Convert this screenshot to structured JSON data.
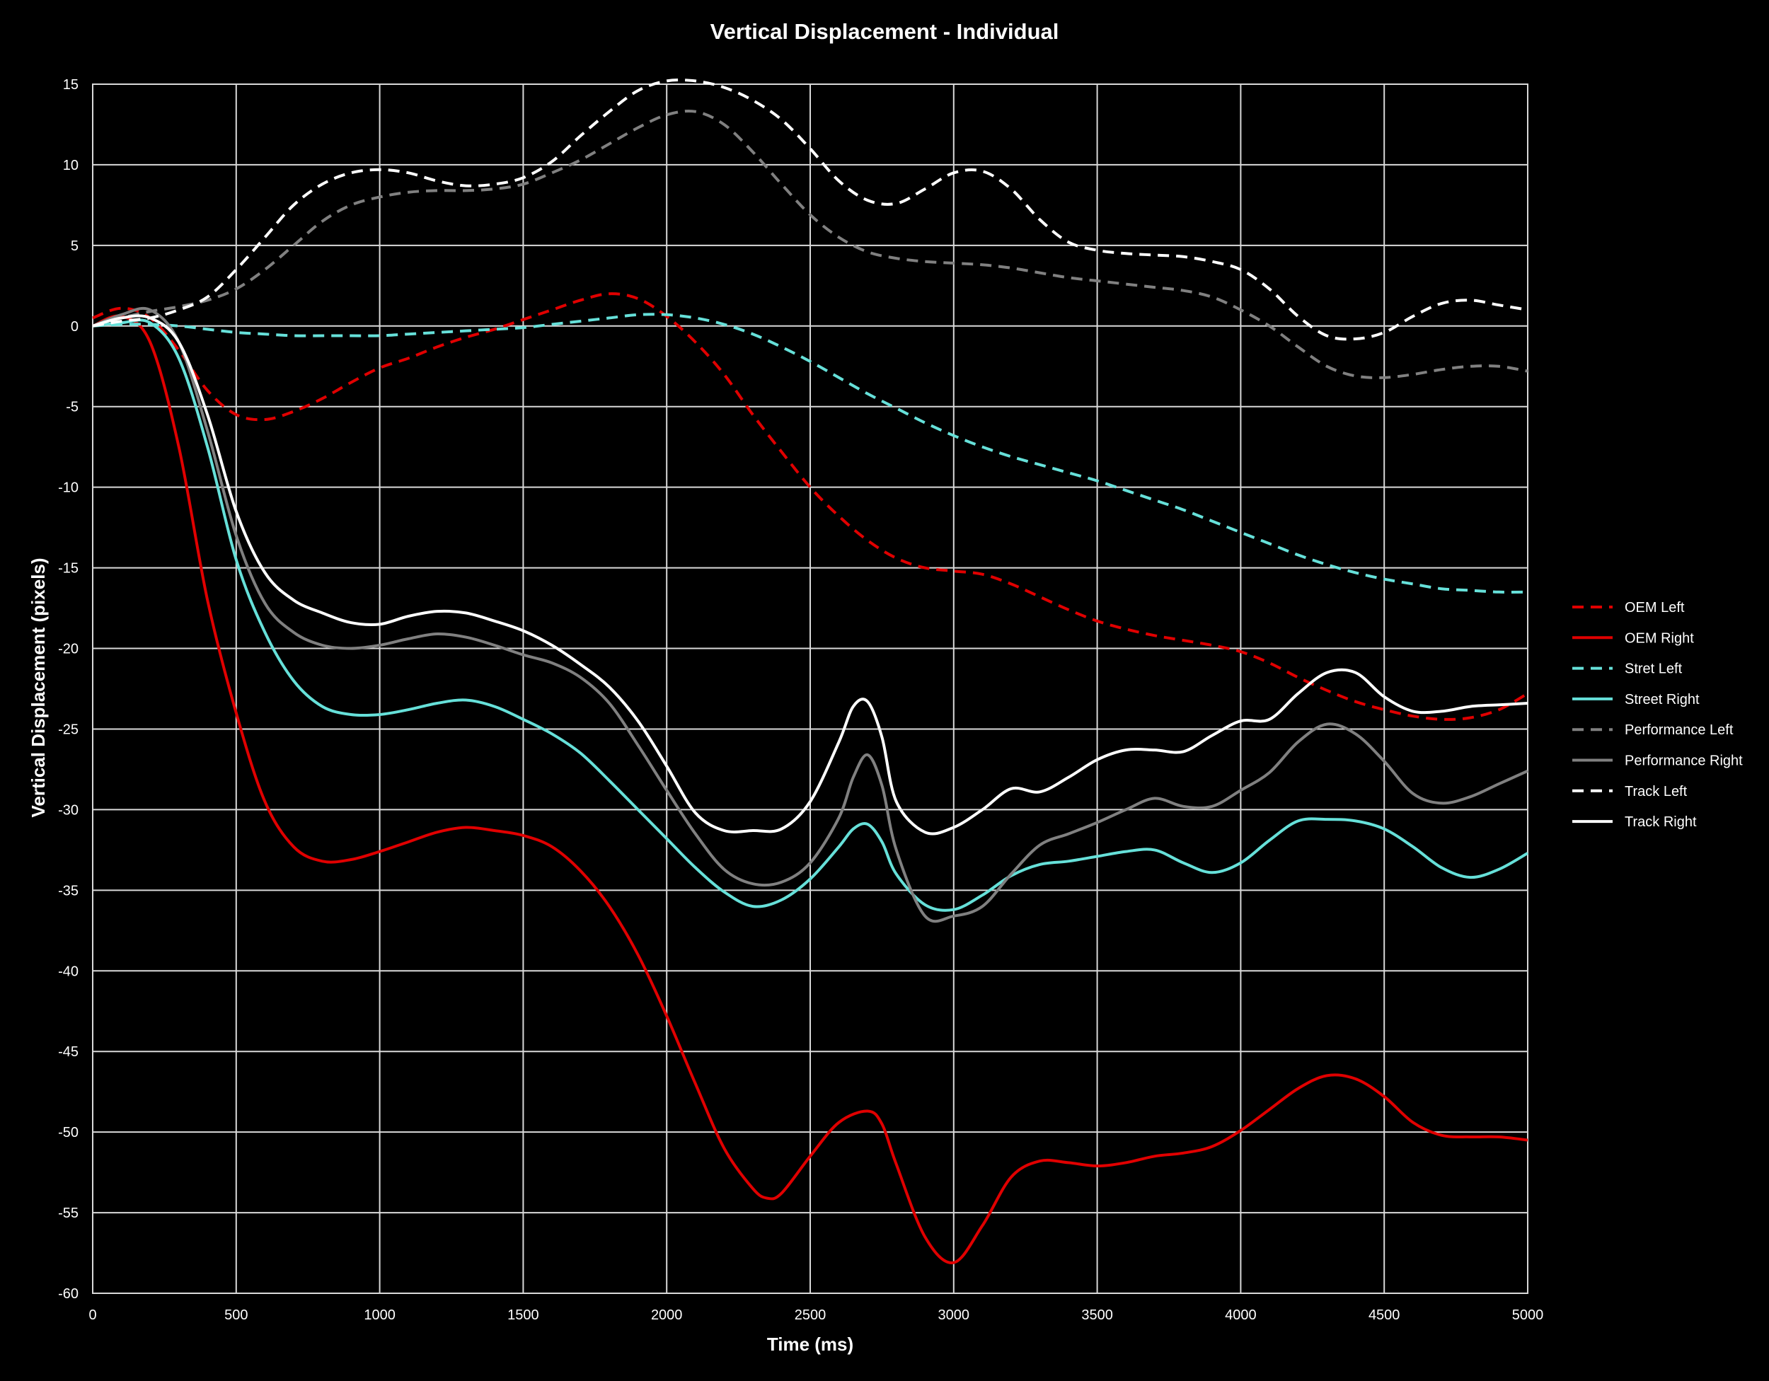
{
  "chart_data": {
    "type": "line",
    "title": "Vertical Displacement - Individual",
    "xlabel": "Time (ms)",
    "ylabel": "Vertical Displacement (pixels)",
    "xlim": [
      0,
      5000
    ],
    "ylim": [
      -60,
      15
    ],
    "xticks": [
      0,
      500,
      1000,
      1500,
      2000,
      2500,
      3000,
      3500,
      4000,
      4500,
      5000
    ],
    "yticks": [
      15,
      10,
      5,
      0,
      -5,
      -10,
      -15,
      -20,
      -25,
      -30,
      -35,
      -40,
      -45,
      -50,
      -55,
      -60
    ],
    "grid": true,
    "legend_position": "right",
    "background": "#000000",
    "grid_color": "#d9d9d9",
    "series": [
      {
        "name": "OEM Left",
        "color": "#e00000",
        "dash": "dashed",
        "x": [
          0,
          100,
          200,
          300,
          400,
          500,
          600,
          700,
          800,
          900,
          1000,
          1100,
          1200,
          1300,
          1400,
          1500,
          1600,
          1700,
          1800,
          1900,
          2000,
          2100,
          2200,
          2300,
          2400,
          2500,
          2600,
          2700,
          2800,
          2900,
          3000,
          3100,
          3200,
          3300,
          3400,
          3500,
          3600,
          3700,
          3800,
          3900,
          4000,
          4100,
          4200,
          4300,
          4400,
          4500,
          4600,
          4700,
          4800,
          4900,
          5000
        ],
        "y": [
          0.5,
          1.1,
          0.5,
          -1.5,
          -4.0,
          -5.5,
          -5.8,
          -5.3,
          -4.5,
          -3.5,
          -2.6,
          -2.0,
          -1.3,
          -0.7,
          -0.2,
          0.4,
          1.0,
          1.6,
          2.0,
          1.7,
          0.6,
          -1.0,
          -3.0,
          -5.5,
          -7.8,
          -10.0,
          -11.8,
          -13.3,
          -14.4,
          -15.0,
          -15.2,
          -15.4,
          -16.0,
          -16.8,
          -17.6,
          -18.3,
          -18.8,
          -19.2,
          -19.5,
          -19.8,
          -20.2,
          -20.9,
          -21.8,
          -22.6,
          -23.3,
          -23.8,
          -24.2,
          -24.4,
          -24.3,
          -23.8,
          -22.8
        ]
      },
      {
        "name": "OEM Right",
        "color": "#e00000",
        "dash": "solid",
        "x": [
          0,
          100,
          200,
          300,
          400,
          500,
          600,
          700,
          800,
          900,
          1000,
          1100,
          1200,
          1300,
          1400,
          1500,
          1600,
          1700,
          1800,
          1900,
          2000,
          2100,
          2200,
          2300,
          2350,
          2400,
          2500,
          2600,
          2700,
          2750,
          2800,
          2900,
          3000,
          3100,
          3200,
          3300,
          3400,
          3500,
          3600,
          3700,
          3800,
          3900,
          4000,
          4100,
          4200,
          4300,
          4400,
          4500,
          4600,
          4700,
          4800,
          4900,
          5000
        ],
        "y": [
          0.0,
          0.6,
          -1.0,
          -7.5,
          -17.0,
          -24.0,
          -29.5,
          -32.3,
          -33.2,
          -33.1,
          -32.6,
          -32.0,
          -31.4,
          -31.1,
          -31.3,
          -31.6,
          -32.3,
          -33.8,
          -36.0,
          -39.0,
          -42.8,
          -47.0,
          -51.0,
          -53.5,
          -54.1,
          -53.8,
          -51.5,
          -49.4,
          -48.7,
          -49.5,
          -52.0,
          -56.5,
          -58.1,
          -55.8,
          -52.8,
          -51.8,
          -51.9,
          -52.1,
          -51.9,
          -51.5,
          -51.3,
          -50.9,
          -49.9,
          -48.6,
          -47.3,
          -46.5,
          -46.7,
          -47.8,
          -49.4,
          -50.2,
          -50.3,
          -50.3,
          -50.5
        ]
      },
      {
        "name": "Stret Left",
        "color": "#66e0d9",
        "dash": "dashed",
        "x": [
          0,
          100,
          200,
          300,
          400,
          500,
          600,
          700,
          800,
          900,
          1000,
          1100,
          1200,
          1300,
          1400,
          1500,
          1600,
          1700,
          1800,
          1900,
          2000,
          2100,
          2200,
          2300,
          2400,
          2500,
          2600,
          2700,
          2800,
          2900,
          3000,
          3100,
          3200,
          3300,
          3400,
          3500,
          3600,
          3700,
          3800,
          3900,
          4000,
          4100,
          4200,
          4300,
          4400,
          4500,
          4600,
          4700,
          4800,
          4900,
          5000
        ],
        "y": [
          0.0,
          0.1,
          0.1,
          0.0,
          -0.2,
          -0.4,
          -0.5,
          -0.6,
          -0.6,
          -0.6,
          -0.6,
          -0.5,
          -0.4,
          -0.3,
          -0.2,
          -0.1,
          0.1,
          0.3,
          0.5,
          0.7,
          0.7,
          0.5,
          0.1,
          -0.5,
          -1.3,
          -2.2,
          -3.2,
          -4.2,
          -5.1,
          -6.0,
          -6.8,
          -7.5,
          -8.1,
          -8.6,
          -9.1,
          -9.6,
          -10.2,
          -10.8,
          -11.4,
          -12.1,
          -12.8,
          -13.5,
          -14.2,
          -14.8,
          -15.3,
          -15.7,
          -16.0,
          -16.3,
          -16.4,
          -16.5,
          -16.5
        ]
      },
      {
        "name": "Street Right",
        "color": "#66e0d9",
        "dash": "solid",
        "x": [
          0,
          100,
          200,
          300,
          400,
          500,
          600,
          700,
          800,
          900,
          1000,
          1100,
          1200,
          1300,
          1400,
          1500,
          1600,
          1700,
          1800,
          1900,
          2000,
          2100,
          2200,
          2300,
          2400,
          2500,
          2600,
          2650,
          2700,
          2750,
          2800,
          2900,
          3000,
          3100,
          3200,
          3300,
          3400,
          3500,
          3600,
          3700,
          3800,
          3900,
          4000,
          4100,
          4200,
          4300,
          4400,
          4500,
          4600,
          4700,
          4800,
          4900,
          5000
        ],
        "y": [
          0.0,
          0.2,
          0.2,
          -2.0,
          -7.5,
          -14.5,
          -19.0,
          -22.0,
          -23.6,
          -24.1,
          -24.1,
          -23.8,
          -23.4,
          -23.2,
          -23.6,
          -24.4,
          -25.3,
          -26.5,
          -28.2,
          -30.0,
          -31.8,
          -33.6,
          -35.1,
          -36.0,
          -35.6,
          -34.3,
          -32.3,
          -31.2,
          -30.9,
          -32.0,
          -34.0,
          -35.9,
          -36.2,
          -35.3,
          -34.1,
          -33.4,
          -33.2,
          -32.9,
          -32.6,
          -32.5,
          -33.3,
          -33.9,
          -33.3,
          -31.9,
          -30.7,
          -30.6,
          -30.7,
          -31.2,
          -32.3,
          -33.6,
          -34.2,
          -33.7,
          -32.7
        ]
      },
      {
        "name": "Performance Left",
        "color": "#808080",
        "dash": "dashed",
        "x": [
          0,
          100,
          200,
          300,
          400,
          500,
          600,
          700,
          800,
          900,
          1000,
          1100,
          1200,
          1300,
          1400,
          1500,
          1600,
          1700,
          1800,
          1900,
          2000,
          2100,
          2200,
          2300,
          2400,
          2500,
          2600,
          2700,
          2800,
          2900,
          3000,
          3100,
          3200,
          3300,
          3400,
          3500,
          3600,
          3700,
          3800,
          3900,
          4000,
          4100,
          4200,
          4300,
          4400,
          4500,
          4600,
          4700,
          4800,
          4900,
          5000
        ],
        "y": [
          0.0,
          0.5,
          0.9,
          1.2,
          1.6,
          2.3,
          3.5,
          5.0,
          6.5,
          7.5,
          8.0,
          8.3,
          8.4,
          8.4,
          8.5,
          8.8,
          9.5,
          10.3,
          11.3,
          12.3,
          13.1,
          13.3,
          12.5,
          10.8,
          8.8,
          6.9,
          5.5,
          4.6,
          4.2,
          4.0,
          3.9,
          3.8,
          3.6,
          3.3,
          3.0,
          2.8,
          2.6,
          2.4,
          2.2,
          1.8,
          1.0,
          0.0,
          -1.3,
          -2.5,
          -3.1,
          -3.2,
          -3.0,
          -2.7,
          -2.5,
          -2.5,
          -2.8
        ]
      },
      {
        "name": "Performance Right",
        "color": "#808080",
        "dash": "solid",
        "x": [
          0,
          100,
          200,
          300,
          400,
          500,
          600,
          700,
          800,
          900,
          1000,
          1100,
          1200,
          1300,
          1400,
          1500,
          1600,
          1700,
          1800,
          1900,
          2000,
          2100,
          2200,
          2300,
          2400,
          2500,
          2600,
          2650,
          2700,
          2750,
          2800,
          2900,
          3000,
          3100,
          3200,
          3300,
          3400,
          3500,
          3600,
          3700,
          3800,
          3900,
          4000,
          4100,
          4200,
          4300,
          4400,
          4500,
          4600,
          4700,
          4800,
          4900,
          5000
        ],
        "y": [
          0.0,
          0.7,
          1.0,
          -1.0,
          -6.5,
          -13.0,
          -17.2,
          -19.0,
          -19.8,
          -20.0,
          -19.8,
          -19.4,
          -19.1,
          -19.3,
          -19.8,
          -20.4,
          -20.9,
          -21.8,
          -23.4,
          -26.0,
          -28.8,
          -31.5,
          -33.7,
          -34.6,
          -34.5,
          -33.3,
          -30.5,
          -28.0,
          -26.6,
          -28.5,
          -32.5,
          -36.6,
          -36.6,
          -36.0,
          -34.0,
          -32.2,
          -31.5,
          -30.8,
          -30.0,
          -29.3,
          -29.8,
          -29.8,
          -28.8,
          -27.7,
          -25.8,
          -24.7,
          -25.3,
          -27.0,
          -29.0,
          -29.6,
          -29.2,
          -28.4,
          -27.6
        ]
      },
      {
        "name": "Track Left",
        "color": "#ffffff",
        "dash": "dashed",
        "x": [
          0,
          100,
          200,
          300,
          400,
          500,
          600,
          700,
          800,
          900,
          1000,
          1100,
          1200,
          1300,
          1400,
          1500,
          1600,
          1700,
          1800,
          1900,
          2000,
          2100,
          2200,
          2300,
          2400,
          2500,
          2600,
          2700,
          2800,
          2900,
          3000,
          3100,
          3200,
          3300,
          3400,
          3500,
          3600,
          3700,
          3800,
          3900,
          4000,
          4100,
          4200,
          4300,
          4400,
          4500,
          4600,
          4700,
          4800,
          4900,
          5000
        ],
        "y": [
          0.0,
          0.3,
          0.5,
          1.0,
          1.8,
          3.5,
          5.5,
          7.5,
          8.8,
          9.5,
          9.7,
          9.5,
          9.0,
          8.7,
          8.8,
          9.2,
          10.2,
          11.8,
          13.3,
          14.6,
          15.2,
          15.2,
          14.8,
          14.0,
          12.8,
          11.0,
          9.0,
          7.8,
          7.6,
          8.5,
          9.5,
          9.6,
          8.5,
          6.6,
          5.2,
          4.7,
          4.5,
          4.4,
          4.3,
          4.0,
          3.5,
          2.3,
          0.6,
          -0.6,
          -0.8,
          -0.4,
          0.6,
          1.4,
          1.6,
          1.3,
          1.0
        ]
      },
      {
        "name": "Track Right",
        "color": "#ffffff",
        "dash": "solid",
        "x": [
          0,
          100,
          200,
          300,
          400,
          500,
          600,
          700,
          800,
          900,
          1000,
          1100,
          1200,
          1300,
          1400,
          1500,
          1600,
          1700,
          1800,
          1900,
          2000,
          2100,
          2200,
          2300,
          2400,
          2500,
          2600,
          2650,
          2700,
          2750,
          2800,
          2900,
          3000,
          3100,
          3200,
          3300,
          3400,
          3500,
          3600,
          3700,
          3800,
          3900,
          4000,
          4100,
          4200,
          4300,
          4400,
          4500,
          4600,
          4700,
          4800,
          4900,
          5000
        ],
        "y": [
          0.0,
          0.5,
          0.5,
          -1.0,
          -5.5,
          -11.5,
          -15.3,
          -17.0,
          -17.8,
          -18.4,
          -18.5,
          -18.0,
          -17.7,
          -17.8,
          -18.3,
          -18.9,
          -19.8,
          -21.0,
          -22.4,
          -24.5,
          -27.3,
          -30.2,
          -31.3,
          -31.3,
          -31.2,
          -29.5,
          -25.8,
          -23.6,
          -23.3,
          -25.5,
          -29.5,
          -31.4,
          -31.1,
          -30.0,
          -28.7,
          -28.9,
          -28.0,
          -26.9,
          -26.3,
          -26.3,
          -26.4,
          -25.4,
          -24.5,
          -24.4,
          -22.8,
          -21.5,
          -21.5,
          -23.0,
          -23.9,
          -23.9,
          -23.6,
          -23.5,
          -23.4
        ]
      }
    ]
  }
}
